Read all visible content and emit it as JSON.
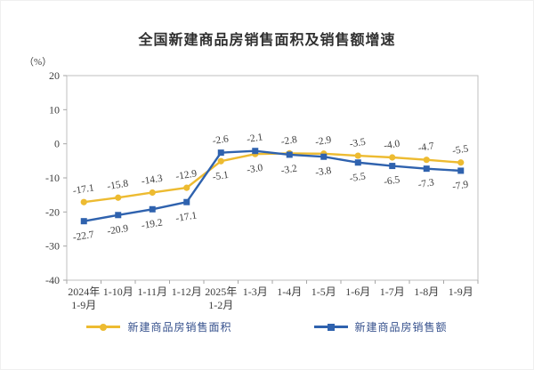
{
  "chart_data": {
    "type": "line",
    "title": "全国新建商品房销售面积及销售额增速",
    "unit_label": "（%）",
    "xlabel": "",
    "ylabel": "（%）",
    "ylim": [
      -40,
      20
    ],
    "yticks": [
      20,
      10,
      0,
      -10,
      -20,
      -30,
      -40
    ],
    "grid": false,
    "legend_position": "bottom",
    "plot_border_color": "#bfbfbf",
    "categories": [
      "2024年\n1-9月",
      "1-10月",
      "1-11月",
      "1-12月",
      "2025年\n1-2月",
      "1-3月",
      "1-4月",
      "1-5月",
      "1-6月",
      "1-7月",
      "1-8月",
      "1-9月"
    ],
    "series": [
      {
        "name": "新建商品房销售面积",
        "color": "#EDBB31",
        "marker": "circle",
        "values": [
          -17.1,
          -15.8,
          -14.3,
          -12.9,
          -5.1,
          -3.0,
          -2.8,
          -2.9,
          -3.5,
          -4.0,
          -4.7,
          -5.5
        ],
        "labels": [
          "-17.1",
          "-15.8",
          "-14.3",
          "-12.9",
          "-5.1",
          "-3.0",
          "-2.8",
          "-2.9",
          "-3.5",
          "-4.0",
          "-4.7",
          "-5.5"
        ]
      },
      {
        "name": "新建商品房销售额",
        "color": "#2F62AE",
        "marker": "square",
        "values": [
          -22.7,
          -20.9,
          -19.2,
          -17.1,
          -2.6,
          -2.1,
          -3.2,
          -3.8,
          -5.5,
          -6.5,
          -7.3,
          -7.9
        ],
        "labels": [
          "-22.7",
          "-20.9",
          "-19.2",
          "-17.1",
          "-2.6",
          "-2.1",
          "-3.2",
          "-3.8",
          "-5.5",
          "-6.5",
          "-7.3",
          "-7.9"
        ]
      }
    ]
  }
}
